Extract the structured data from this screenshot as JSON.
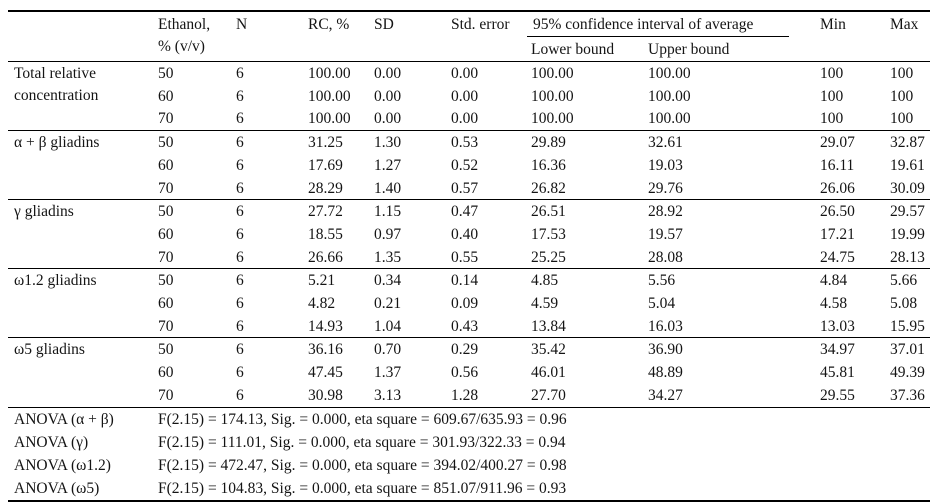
{
  "page": {
    "background": "#ffffff",
    "text_color": "#141414",
    "rule_color": "#000000"
  },
  "table": {
    "header": {
      "label": "",
      "ethanol_line1": "Ethanol,",
      "ethanol_line2": "% (v/v)",
      "n": "N",
      "rc": "RC, %",
      "sd": "SD",
      "std_error": "Std. error",
      "ci_group": "95% confidence interval of average",
      "lower_bound": "Lower bound",
      "upper_bound": "Upper bound",
      "min": "Min",
      "max": "Max"
    },
    "sections": [
      {
        "label": "Total relative concentration",
        "rows": [
          {
            "ethanol": "50",
            "n": "6",
            "rc": "100.00",
            "sd": "0.00",
            "se": "0.00",
            "lower": "100.00",
            "upper": "100.00",
            "min": "100",
            "max": "100"
          },
          {
            "ethanol": "60",
            "n": "6",
            "rc": "100.00",
            "sd": "0.00",
            "se": "0.00",
            "lower": "100.00",
            "upper": "100.00",
            "min": "100",
            "max": "100"
          },
          {
            "ethanol": "70",
            "n": "6",
            "rc": "100.00",
            "sd": "0.00",
            "se": "0.00",
            "lower": "100.00",
            "upper": "100.00",
            "min": "100",
            "max": "100"
          }
        ]
      },
      {
        "label": "α + β gliadins",
        "rows": [
          {
            "ethanol": "50",
            "n": "6",
            "rc": "31.25",
            "sd": "1.30",
            "se": "0.53",
            "lower": "29.89",
            "upper": "32.61",
            "min": "29.07",
            "max": "32.87"
          },
          {
            "ethanol": "60",
            "n": "6",
            "rc": "17.69",
            "sd": "1.27",
            "se": "0.52",
            "lower": "16.36",
            "upper": "19.03",
            "min": "16.11",
            "max": "19.61"
          },
          {
            "ethanol": "70",
            "n": "6",
            "rc": "28.29",
            "sd": "1.40",
            "se": "0.57",
            "lower": "26.82",
            "upper": "29.76",
            "min": "26.06",
            "max": "30.09"
          }
        ]
      },
      {
        "label": "γ gliadins",
        "rows": [
          {
            "ethanol": "50",
            "n": "6",
            "rc": "27.72",
            "sd": "1.15",
            "se": "0.47",
            "lower": "26.51",
            "upper": "28.92",
            "min": "26.50",
            "max": "29.57"
          },
          {
            "ethanol": "60",
            "n": "6",
            "rc": "18.55",
            "sd": "0.97",
            "se": "0.40",
            "lower": "17.53",
            "upper": "19.57",
            "min": "17.21",
            "max": "19.99"
          },
          {
            "ethanol": "70",
            "n": "6",
            "rc": "26.66",
            "sd": "1.35",
            "se": "0.55",
            "lower": "25.25",
            "upper": "28.08",
            "min": "24.75",
            "max": "28.13"
          }
        ]
      },
      {
        "label": "ω1.2 gliadins",
        "rows": [
          {
            "ethanol": "50",
            "n": "6",
            "rc": "5.21",
            "sd": "0.34",
            "se": "0.14",
            "lower": "4.85",
            "upper": "5.56",
            "min": "4.84",
            "max": "5.66"
          },
          {
            "ethanol": "60",
            "n": "6",
            "rc": "4.82",
            "sd": "0.21",
            "se": "0.09",
            "lower": "4.59",
            "upper": "5.04",
            "min": "4.58",
            "max": "5.08"
          },
          {
            "ethanol": "70",
            "n": "6",
            "rc": "14.93",
            "sd": "1.04",
            "se": "0.43",
            "lower": "13.84",
            "upper": "16.03",
            "min": "13.03",
            "max": "15.95"
          }
        ]
      },
      {
        "label": "ω5 gliadins",
        "rows": [
          {
            "ethanol": "50",
            "n": "6",
            "rc": "36.16",
            "sd": "0.70",
            "se": "0.29",
            "lower": "35.42",
            "upper": "36.90",
            "min": "34.97",
            "max": "37.01"
          },
          {
            "ethanol": "60",
            "n": "6",
            "rc": "47.45",
            "sd": "1.37",
            "se": "0.56",
            "lower": "46.01",
            "upper": "48.89",
            "min": "45.81",
            "max": "49.39"
          },
          {
            "ethanol": "70",
            "n": "6",
            "rc": "30.98",
            "sd": "3.13",
            "se": "1.28",
            "lower": "27.70",
            "upper": "34.27",
            "min": "29.55",
            "max": "37.36"
          }
        ]
      }
    ],
    "anova_rows": [
      {
        "label": "ANOVA (α + β)",
        "text": "F(2.15) = 174.13, Sig. = 0.000, eta square = 609.67/635.93 = 0.96"
      },
      {
        "label": "ANOVA (γ)",
        "text": "F(2.15) = 111.01, Sig. = 0.000, eta square = 301.93/322.33 = 0.94"
      },
      {
        "label": "ANOVA (ω1.2)",
        "text": "F(2.15) = 472.47, Sig. = 0.000, eta square = 394.02/400.27 = 0.98"
      },
      {
        "label": "ANOVA (ω5)",
        "text": "F(2.15) = 104.83, Sig. = 0.000, eta square = 851.07/911.96 = 0.93"
      }
    ]
  }
}
